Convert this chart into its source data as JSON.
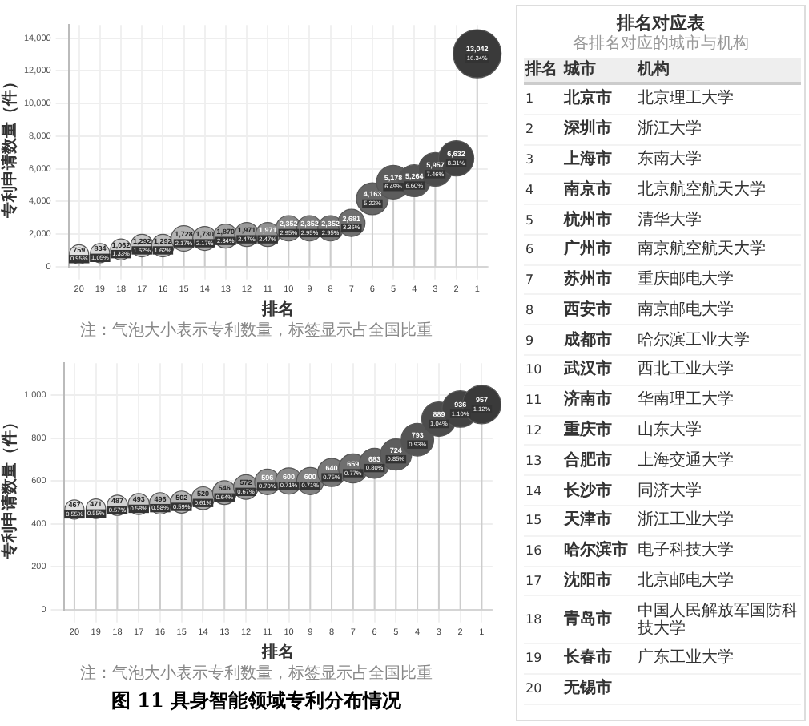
{
  "chart_data": [
    {
      "type": "bubble",
      "xlabel": "排名",
      "ylabel": "专利申请数量（件）",
      "categories": [
        "20",
        "19",
        "18",
        "17",
        "16",
        "15",
        "14",
        "13",
        "12",
        "11",
        "10",
        "9",
        "8",
        "7",
        "6",
        "5",
        "4",
        "3",
        "2",
        "1"
      ],
      "values": [
        759,
        834,
        1062,
        1292,
        1292,
        1728,
        1730,
        1870,
        1971,
        1971,
        2352,
        2352,
        2352,
        2681,
        4163,
        5178,
        5264,
        5957,
        6632,
        13042
      ],
      "value_labels": [
        "759",
        "834",
        "1,062",
        "1,292",
        "1,292",
        "1,728",
        "1,730",
        "1,870",
        "1,971",
        "1,971",
        "2,352",
        "2,352",
        "2,352",
        "2,681",
        "4,163",
        "5,178",
        "5,264",
        "5,957",
        "6,632",
        "13,042"
      ],
      "sizes": [
        0.16,
        0.16,
        0.19,
        0.22,
        0.22,
        0.28,
        0.25,
        0.25,
        0.25,
        0.25,
        0.28,
        0.28,
        0.28,
        0.32,
        0.44,
        0.49,
        0.44,
        0.49,
        0.54,
        1
      ],
      "colors": [
        "#e0e0e0",
        "#d7d7d7",
        "#cfcfcf",
        "#c6c6c6",
        "#bdbdbd",
        "#b4b4b4",
        "#acacac",
        "#a3a3a3",
        "#9a9a9a",
        "#919191",
        "#898989",
        "#808080",
        "#777777",
        "#6f6f6f",
        "#666666",
        "#5d5d5d",
        "#545454",
        "#4c4c4c",
        "#434343",
        "#3a3a3a"
      ],
      "ylim": [
        0,
        14800
      ],
      "yticks": [
        0,
        {
          "value": 2000,
          "label": "2,000"
        },
        {
          "value": 4000,
          "label": "4,000"
        },
        {
          "value": 6000,
          "label": "6,000"
        },
        {
          "value": 8000,
          "label": "8,000"
        },
        {
          "value": 10000,
          "label": "10,000"
        },
        {
          "value": 12000,
          "label": "12,000"
        },
        {
          "value": 14000,
          "label": "14,000"
        }
      ],
      "grid": true,
      "annotations": [
        "注：气泡大小表示专利数量，标签显示占全国比重",
        {
          "text": "0.95%",
          "x": "20",
          "y": 759
        },
        {
          "text": "1.05%",
          "x": "19",
          "y": 834
        },
        {
          "text": "1.33%",
          "x": "18",
          "y": 1062
        },
        {
          "text": "1.62%",
          "x": "17",
          "y": 1292
        },
        {
          "text": "1.62%",
          "x": "16",
          "y": 1292
        },
        {
          "text": "2.17%",
          "x": "15",
          "y": 1728
        },
        {
          "text": "2.17%",
          "x": "14",
          "y": 1730
        },
        {
          "text": "2.34%",
          "x": "13",
          "y": 1870
        },
        {
          "text": "2.47%",
          "x": "12",
          "y": 1971
        },
        {
          "text": "2.47%",
          "x": "11",
          "y": 1971
        },
        {
          "text": "2.95%",
          "x": "10",
          "y": 2352
        },
        {
          "text": "2.95%",
          "x": "9",
          "y": 2352
        },
        {
          "text": "2.95%",
          "x": "8",
          "y": 2352
        },
        {
          "text": "3.36%",
          "x": "7",
          "y": 2681
        },
        {
          "text": "5.22%",
          "x": "6",
          "y": 4163
        },
        {
          "text": "6.49%",
          "x": "5",
          "y": 5178
        },
        {
          "text": "6.60%",
          "x": "4",
          "y": 5264
        },
        {
          "text": "7.46%",
          "x": "3",
          "y": 5957
        },
        {
          "text": "8.31%",
          "x": "2",
          "y": 6632
        },
        {
          "text": "16.34%",
          "x": "1",
          "y": 13042
        }
      ]
    },
    {
      "type": "bubble",
      "xlabel": "排名",
      "ylabel": "专利申请数量（件）",
      "categories": [
        "20",
        "19",
        "18",
        "17",
        "16",
        "15",
        "14",
        "13",
        "12",
        "11",
        "10",
        "9",
        "8",
        "7",
        "6",
        "5",
        "4",
        "3",
        "2",
        "1"
      ],
      "values": [
        467,
        471,
        487,
        493,
        496,
        502,
        520,
        546,
        572,
        596,
        600,
        600,
        640,
        659,
        683,
        724,
        793,
        889,
        936,
        957
      ],
      "value_labels": [
        "467",
        "471",
        "487",
        "493",
        "496",
        "502",
        "520",
        "546",
        "572",
        "596",
        "600",
        "600",
        "640",
        "659",
        "683",
        "724",
        "793",
        "889",
        "936",
        "957"
      ],
      "sizes": [
        0.25,
        0.26,
        0.28,
        0.3,
        0.31,
        0.33,
        0.35,
        0.38,
        0.41,
        0.44,
        0.47,
        0.5,
        0.53,
        0.57,
        0.61,
        0.66,
        0.72,
        0.8,
        0.9,
        1
      ],
      "colors": [
        "#e0e0e0",
        "#d7d7d7",
        "#cfcfcf",
        "#c6c6c6",
        "#bdbdbd",
        "#b4b4b4",
        "#acacac",
        "#a3a3a3",
        "#9a9a9a",
        "#919191",
        "#898989",
        "#808080",
        "#777777",
        "#6f6f6f",
        "#666666",
        "#5d5d5d",
        "#545454",
        "#4c4c4c",
        "#434343",
        "#3a3a3a"
      ],
      "ylim": [
        0,
        1150
      ],
      "yticks": [
        0,
        200,
        400,
        600,
        800,
        {
          "value": 1000,
          "label": "1,000"
        }
      ],
      "grid": true,
      "annotations": [
        "注：气泡大小表示专利数量，标签显示占全国比重",
        {
          "text": "0.55%",
          "x": "20",
          "y": 467
        },
        {
          "text": "0.55%",
          "x": "19",
          "y": 471
        },
        {
          "text": "0.57%",
          "x": "18",
          "y": 487
        },
        {
          "text": "0.58%",
          "x": "17",
          "y": 493
        },
        {
          "text": "0.58%",
          "x": "16",
          "y": 496
        },
        {
          "text": "0.59%",
          "x": "15",
          "y": 502
        },
        {
          "text": "0.61%",
          "x": "14",
          "y": 520
        },
        {
          "text": "0.64%",
          "x": "13",
          "y": 546
        },
        {
          "text": "0.67%",
          "x": "12",
          "y": 572
        },
        {
          "text": "0.70%",
          "x": "11",
          "y": 596
        },
        {
          "text": "0.71%",
          "x": "10",
          "y": 600
        },
        {
          "text": "0.71%",
          "x": "9",
          "y": 600
        },
        {
          "text": "0.75%",
          "x": "8",
          "y": 640
        },
        {
          "text": "0.77%",
          "x": "7",
          "y": 659
        },
        {
          "text": "0.80%",
          "x": "6",
          "y": 683
        },
        {
          "text": "0.85%",
          "x": "5",
          "y": 724
        },
        {
          "text": "0.93%",
          "x": "4",
          "y": 793
        },
        {
          "text": "1.04%",
          "x": "3",
          "y": 889
        },
        {
          "text": "1.10%",
          "x": "2",
          "y": 936
        },
        {
          "text": "1.12%",
          "x": "1",
          "y": 957
        }
      ]
    },
    {
      "type": "other",
      "title": "排名对应表",
      "subtitle": "各排名对应的城市与机构",
      "annotations": [
        "排名",
        "城市",
        "机构",
        "1",
        "北京市",
        "北京理工大学",
        "2",
        "深圳市",
        "浙江大学",
        "3",
        "上海市",
        "东南大学",
        "4",
        "南京市",
        "北京航空航天大学",
        "5",
        "杭州市",
        "清华大学",
        "6",
        "广州市",
        "南京航空航天大学",
        "7",
        "苏州市",
        "重庆邮电大学",
        "8",
        "西安市",
        "南京邮电大学",
        "9",
        "成都市",
        "哈尔滨工业大学",
        "10",
        "武汉市",
        "西北工业大学",
        "11",
        "济南市",
        "华南理工大学",
        "12",
        "重庆市",
        "山东大学",
        "13",
        "合肥市",
        "上海交通大学",
        "14",
        "长沙市",
        "同济大学",
        "15",
        "天津市",
        "浙江工业大学",
        "16",
        "哈尔滨市",
        "电子科技大学",
        "17",
        "沈阳市",
        "北京邮电大学",
        "18",
        "青岛市",
        "中国人民解放军国防科技大学",
        "19",
        "长春市",
        "广东工业大学",
        "20",
        "无锡市"
      ]
    },
    {
      "type": "other",
      "title": "图 11  具身智能领域专利分布情况"
    }
  ]
}
